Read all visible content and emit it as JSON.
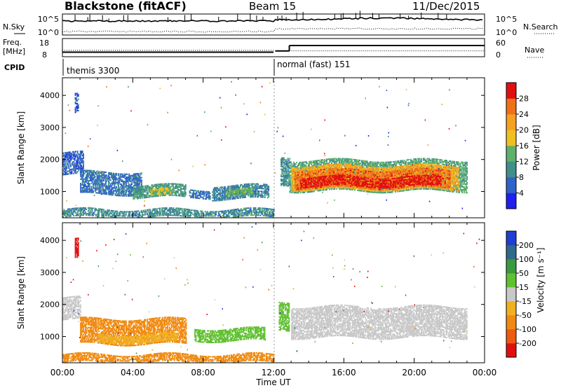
{
  "header": {
    "station": "Blackstone (fitACF)",
    "beam": "Beam 15",
    "date": "11/Dec/2015"
  },
  "summary_panels": {
    "noise": {
      "left_label": "N.Sky",
      "right_label": "N.Search",
      "left_ticks": [
        "10^5",
        "10^0"
      ],
      "right_ticks": [
        "10^5",
        "10^0"
      ]
    },
    "freq": {
      "left_label_line1": "Freq.",
      "left_label_line2": "[MHz]",
      "right_label": "Nave",
      "left_ticks": [
        "18",
        "8"
      ],
      "right_ticks": [
        "60",
        "0"
      ],
      "freq_segments": [
        {
          "from_hour": 0.0,
          "to_hour": 12.0,
          "value_mhz": 10.5
        },
        {
          "from_hour": 12.1,
          "to_hour": 12.9,
          "value_mhz": 11.3
        },
        {
          "from_hour": 12.9,
          "to_hour": 24.0,
          "value_mhz": 14.8
        }
      ],
      "nave_segments": [
        {
          "from_hour": 0.0,
          "to_hour": 12.0,
          "value": 22
        },
        {
          "from_hour": 12.9,
          "to_hour": 24.0,
          "value": 20
        }
      ]
    },
    "cpid": {
      "label": "CPID",
      "segments": [
        {
          "from_hour": 0.0,
          "name": "themis 3300"
        },
        {
          "from_hour": 12.0,
          "name": "normal (fast) 151"
        }
      ]
    }
  },
  "chart_data": [
    {
      "type": "heatmap",
      "title": "",
      "ylabel": "Slant Range [km]",
      "xlabel": "",
      "xlim": [
        0,
        24
      ],
      "ylim": [
        180,
        4550
      ],
      "y_ticks": [
        "1000",
        "2000",
        "3000",
        "4000"
      ],
      "colorbar": {
        "label": "Power [dB]",
        "ticks": [
          "4",
          "8",
          "12",
          "16",
          "20",
          "24",
          "28"
        ],
        "levels": [
          {
            "from": 0,
            "to": 4,
            "color": "#1f1ff0"
          },
          {
            "from": 4,
            "to": 8,
            "color": "#2f63c9"
          },
          {
            "from": 8,
            "to": 12,
            "color": "#3f8f8a"
          },
          {
            "from": 12,
            "to": 16,
            "color": "#5fb06a"
          },
          {
            "from": 16,
            "to": 20,
            "color": "#f0c020"
          },
          {
            "from": 20,
            "to": 24,
            "color": "#f5a020"
          },
          {
            "from": 24,
            "to": 28,
            "color": "#f07018"
          },
          {
            "from": 28,
            "to": 32,
            "color": "#e01010"
          }
        ]
      },
      "bands": [
        {
          "t0": 0.0,
          "t1": 1.2,
          "r_lo": 1500,
          "r_hi": 2200,
          "value": 6
        },
        {
          "t0": 1.0,
          "t1": 4.5,
          "r_lo": 900,
          "r_hi": 1600,
          "value": 7
        },
        {
          "t0": 4.0,
          "t1": 7.0,
          "r_lo": 800,
          "r_hi": 1200,
          "value": 11
        },
        {
          "t0": 5.0,
          "t1": 6.2,
          "r_lo": 850,
          "r_hi": 1050,
          "value": 17
        },
        {
          "t0": 7.2,
          "t1": 8.4,
          "r_lo": 800,
          "r_hi": 1050,
          "value": 7
        },
        {
          "t0": 8.5,
          "t1": 11.7,
          "r_lo": 750,
          "r_hi": 1200,
          "value": 9
        },
        {
          "t0": 9.3,
          "t1": 10.8,
          "r_lo": 850,
          "r_hi": 1050,
          "value": 14
        },
        {
          "t0": 0.0,
          "t1": 12.0,
          "r_lo": 180,
          "r_hi": 420,
          "value": 10
        },
        {
          "t0": 12.4,
          "t1": 12.9,
          "r_lo": 1200,
          "r_hi": 2100,
          "value": 10
        },
        {
          "t0": 12.9,
          "t1": 23.0,
          "r_lo": 1000,
          "r_hi": 1950,
          "value": 13
        },
        {
          "t0": 13.0,
          "t1": 22.5,
          "r_lo": 1050,
          "r_hi": 1800,
          "value": 21
        },
        {
          "t0": 13.2,
          "t1": 22.0,
          "r_lo": 1100,
          "r_hi": 1650,
          "value": 26
        },
        {
          "t0": 13.5,
          "t1": 21.5,
          "r_lo": 1150,
          "r_hi": 1450,
          "value": 30
        },
        {
          "t0": 0.7,
          "t1": 0.9,
          "r_lo": 3400,
          "r_hi": 4050,
          "value": 6
        }
      ]
    },
    {
      "type": "heatmap",
      "title": "",
      "ylabel": "Slant Range [km]",
      "xlabel": "Time UT",
      "xlim": [
        0,
        24
      ],
      "ylim": [
        180,
        4550
      ],
      "x_ticks": [
        "00:00",
        "04:00",
        "08:00",
        "12:00",
        "16:00",
        "20:00",
        "00:00"
      ],
      "y_ticks": [
        "1000",
        "2000",
        "3000",
        "4000"
      ],
      "colorbar": {
        "label": "Velocity [m s⁻¹]",
        "ticks": [
          "200",
          "100",
          "50",
          "15",
          "-15",
          "-50",
          "-100",
          "-200"
        ],
        "levels": [
          {
            "from": 150,
            "to": 250,
            "color": "#1f3fd0"
          },
          {
            "from": 75,
            "to": 150,
            "color": "#2f6a8a"
          },
          {
            "from": 30,
            "to": 75,
            "color": "#3a9a40"
          },
          {
            "from": 15,
            "to": 30,
            "color": "#60c030"
          },
          {
            "from": -15,
            "to": 15,
            "color": "#c8c8c8"
          },
          {
            "from": -30,
            "to": -15,
            "color": "#f0b020"
          },
          {
            "from": -75,
            "to": -30,
            "color": "#f08a10"
          },
          {
            "from": -150,
            "to": -75,
            "color": "#ee5a10"
          },
          {
            "from": -250,
            "to": -150,
            "color": "#e01010"
          }
        ]
      },
      "bands": [
        {
          "t0": 0.0,
          "t1": 1.0,
          "r_lo": 1500,
          "r_hi": 2200,
          "value": -5
        },
        {
          "t0": 1.0,
          "t1": 7.0,
          "r_lo": 750,
          "r_hi": 1550,
          "value": -40
        },
        {
          "t0": 2.0,
          "t1": 6.5,
          "r_lo": 800,
          "r_hi": 1050,
          "value": -20
        },
        {
          "t0": 7.5,
          "t1": 11.5,
          "r_lo": 850,
          "r_hi": 1250,
          "value": 25
        },
        {
          "t0": 0.0,
          "t1": 12.0,
          "r_lo": 180,
          "r_hi": 420,
          "value": -35
        },
        {
          "t0": 12.3,
          "t1": 12.9,
          "r_lo": 1200,
          "r_hi": 2100,
          "value": 20
        },
        {
          "t0": 13.0,
          "t1": 23.0,
          "r_lo": 950,
          "r_hi": 1900,
          "value": 0
        },
        {
          "t0": 0.7,
          "t1": 0.9,
          "r_lo": 3400,
          "r_hi": 4000,
          "value": -220
        }
      ]
    }
  ],
  "colors": {
    "frame": "#000000",
    "dotted_separator": "#9a9a9a"
  }
}
